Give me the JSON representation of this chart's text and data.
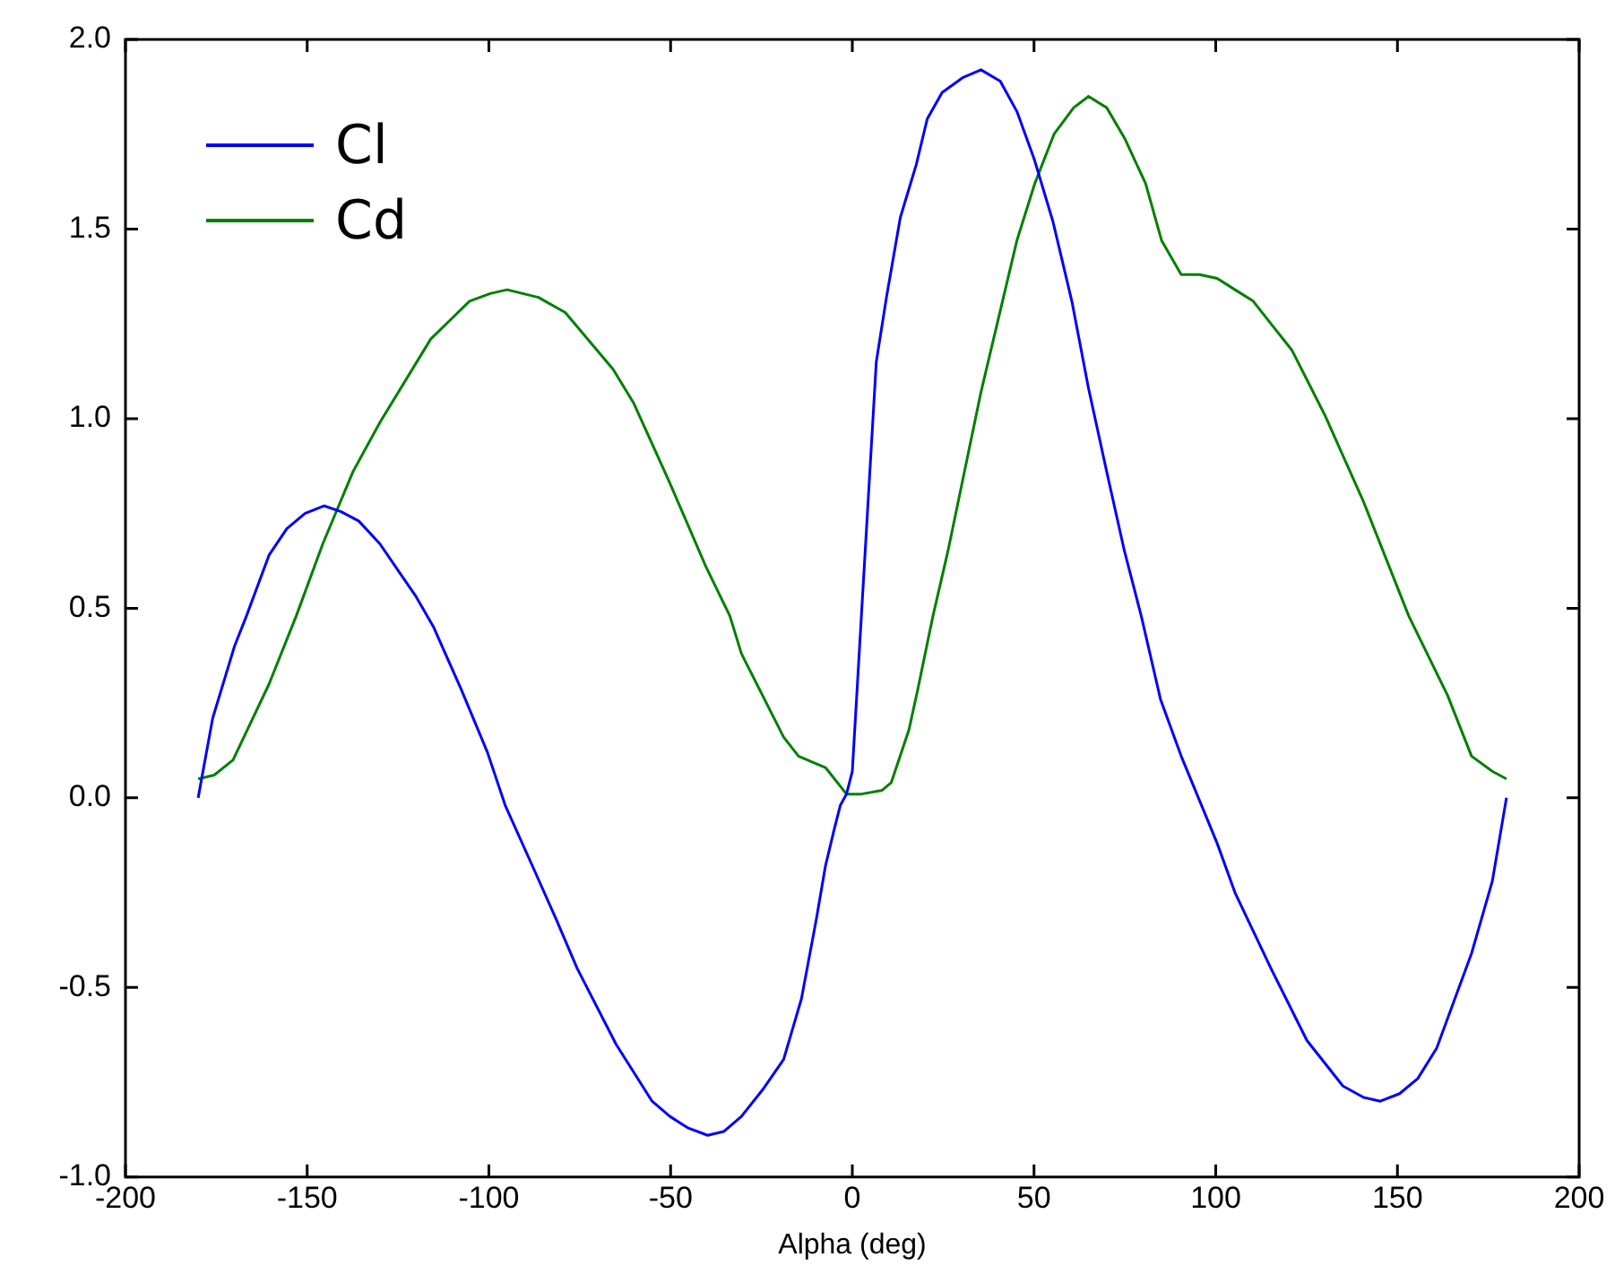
{
  "chart_data": {
    "type": "line",
    "xlabel": "Alpha (deg)",
    "xlim": [
      -200,
      200
    ],
    "xticks": [
      -200,
      -150,
      -100,
      -50,
      0,
      50,
      100,
      150,
      200
    ],
    "ylim": [
      -1.0,
      2.0
    ],
    "yticks": [
      {
        "value": -1,
        "label": "-1.0"
      },
      {
        "value": -0.5,
        "label": "-0.5"
      },
      {
        "value": 0,
        "label": "0.0"
      },
      {
        "value": 0.5,
        "label": "0.5"
      },
      {
        "value": 1,
        "label": "1.0"
      },
      {
        "value": 1.5,
        "label": "1.5"
      },
      {
        "value": 2,
        "label": "2.0"
      }
    ],
    "grid": false,
    "legend": "top left",
    "marker": "none",
    "line_style": "solid",
    "series": [
      {
        "name": "Cl",
        "color": "#0000ff",
        "x": [
          -180,
          -176,
          -170,
          -166.7,
          -160.5,
          -155.6,
          -150.6,
          -145.3,
          -140.7,
          -135.8,
          -130,
          -125,
          -120,
          -115.2,
          -107.8,
          -100.4,
          -95.5,
          -88,
          -81.5,
          -75.7,
          -65,
          -55.1,
          -50.2,
          -45.3,
          -39.8,
          -35.4,
          -30.5,
          -24.7,
          -18.9,
          -14,
          -9.9,
          -7.4,
          -4.9,
          -3.3,
          -1.6,
          0,
          2.5,
          6.6,
          9.4,
          13.2,
          17.6,
          20.6,
          24.7,
          30.5,
          35.4,
          40.7,
          45.3,
          50.2,
          55.2,
          60.4,
          65,
          70,
          74.9,
          79.5,
          84.8,
          90.5,
          100.4,
          105.3,
          115.2,
          125.1,
          135,
          140.7,
          145.3,
          150.6,
          155.6,
          160.8,
          170.4,
          176.1,
          180
        ],
        "values": [
          0,
          0.21,
          0.4,
          0.48,
          0.64,
          0.71,
          0.75,
          0.77,
          0.755,
          0.73,
          0.67,
          0.6,
          0.53,
          0.45,
          0.29,
          0.12,
          -0.02,
          -0.18,
          -0.32,
          -0.45,
          -0.65,
          -0.8,
          -0.84,
          -0.87,
          -0.89,
          -0.88,
          -0.84,
          -0.77,
          -0.69,
          -0.53,
          -0.32,
          -0.18,
          -0.08,
          -0.02,
          0.01,
          0.07,
          0.48,
          1.15,
          1.32,
          1.53,
          1.67,
          1.79,
          1.86,
          1.9,
          1.92,
          1.89,
          1.81,
          1.68,
          1.52,
          1.31,
          1.08,
          0.86,
          0.65,
          0.48,
          0.26,
          0.11,
          -0.12,
          -0.25,
          -0.45,
          -0.64,
          -0.76,
          -0.79,
          -0.8,
          -0.78,
          -0.74,
          -0.66,
          -0.41,
          -0.22,
          0
        ]
      },
      {
        "name": "Cd",
        "color": "#008000",
        "x": [
          -180,
          -175.6,
          -170.4,
          -160.5,
          -153,
          -145.7,
          -137.4,
          -130,
          -116,
          -105.3,
          -99.6,
          -95,
          -86.4,
          -79,
          -65.8,
          -60.1,
          -50.2,
          -40.3,
          -33.7,
          -30.5,
          -24.7,
          -18.9,
          -14.8,
          -9.9,
          -7.4,
          -1.6,
          0.8,
          2.5,
          8.2,
          10.7,
          15.6,
          18.1,
          22.2,
          26.3,
          35.4,
          45.3,
          50.2,
          55.5,
          60.9,
          65,
          70,
          74.9,
          80.7,
          85.1,
          90.5,
          95.5,
          100.4,
          105.3,
          110.3,
          115.2,
          121,
          130,
          140.7,
          153.1,
          163.8,
          170.4,
          176.1,
          180
        ],
        "values": [
          0.05,
          0.06,
          0.1,
          0.3,
          0.48,
          0.67,
          0.86,
          0.99,
          1.21,
          1.31,
          1.33,
          1.34,
          1.32,
          1.28,
          1.13,
          1.04,
          0.83,
          0.61,
          0.48,
          0.38,
          0.27,
          0.16,
          0.11,
          0.09,
          0.08,
          0.01,
          0.01,
          0.01,
          0.02,
          0.04,
          0.18,
          0.29,
          0.48,
          0.65,
          1.07,
          1.47,
          1.62,
          1.75,
          1.82,
          1.85,
          1.82,
          1.74,
          1.62,
          1.47,
          1.38,
          1.38,
          1.37,
          1.34,
          1.31,
          1.25,
          1.18,
          1.01,
          0.78,
          0.48,
          0.27,
          0.11,
          0.07,
          0.05
        ]
      }
    ]
  }
}
